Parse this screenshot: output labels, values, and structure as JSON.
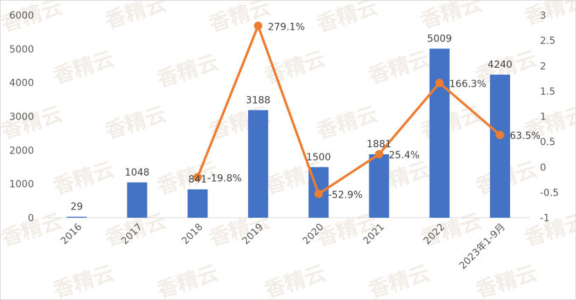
{
  "chart_data": {
    "type": "bar",
    "categories": [
      "2016",
      "2017",
      "2018",
      "2019",
      "2020",
      "2021",
      "2022",
      "2023年1-9月"
    ],
    "series": [
      {
        "type": "bar",
        "axis": "left",
        "values": [
          29,
          1048,
          841,
          3188,
          1500,
          1881,
          5009,
          4240
        ],
        "labels": [
          "29",
          "1048",
          "841",
          "3188",
          "1500",
          "1881",
          "5009",
          "4240"
        ],
        "color": "#4472c4"
      },
      {
        "type": "line",
        "axis": "right",
        "values": [
          null,
          null,
          -0.198,
          2.791,
          -0.529,
          0.254,
          1.663,
          0.635
        ],
        "labels": [
          "",
          "",
          "-19.8%",
          "279.1%",
          "-52.9%",
          "25.4%",
          "166.3%",
          "63.5%"
        ],
        "color": "#ed7d31"
      }
    ],
    "y_left": {
      "min": 0,
      "max": 6000,
      "ticks": [
        "0",
        "1000",
        "2000",
        "3000",
        "4000",
        "5000",
        "6000"
      ]
    },
    "y_right": {
      "min": -1,
      "max": 3,
      "ticks": [
        "-1",
        "-0.5",
        "0",
        "0.5",
        "1",
        "1.5",
        "2",
        "2.5",
        "3"
      ]
    },
    "grid": false,
    "legend": "none"
  },
  "watermark": "香精云"
}
